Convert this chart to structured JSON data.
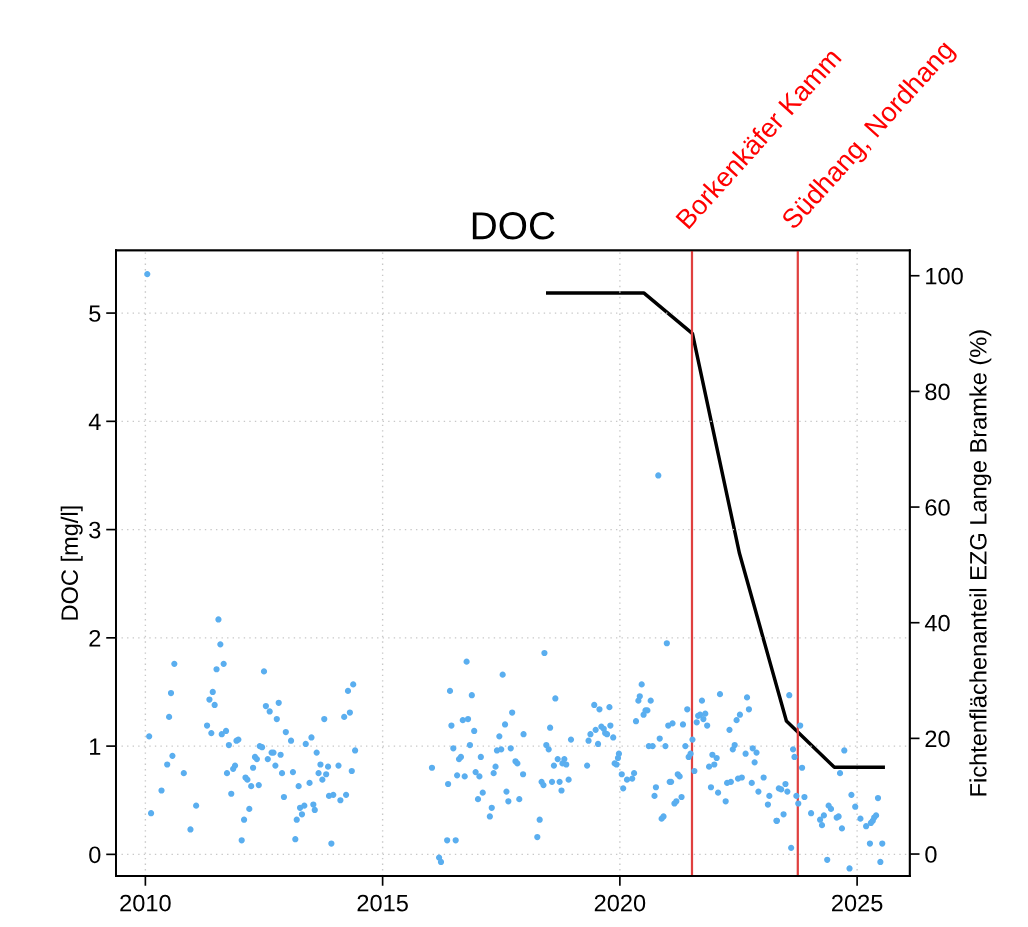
{
  "chart_data": {
    "type": "scatter",
    "title": "DOC",
    "ylabel": "DOC [mg/l]",
    "y2label": "Fichtenflächenanteil EZG Lange Bramke (%)",
    "xlim": [
      2009.38,
      2026.11
    ],
    "xticks": [
      2010,
      2015,
      2020,
      2025
    ],
    "ylim": [
      -0.2,
      5.58
    ],
    "yticks": [
      0,
      1,
      2,
      3,
      4,
      5
    ],
    "y2lim": [
      -3.8,
      104.4
    ],
    "y2ticks": [
      0,
      20,
      40,
      60,
      80,
      100
    ],
    "grid": true,
    "legend": false,
    "ref_lines": [
      {
        "axis": "x",
        "value": 2021.52,
        "label": "Borkenkäfer Kamm",
        "color": "#e0403f",
        "line_style": "solid"
      },
      {
        "axis": "x",
        "value": 2023.75,
        "label": "Südhang, Nordhang",
        "color": "#e0403f",
        "line_style": "solid"
      }
    ],
    "series": [
      {
        "color": "#5aaeef",
        "marker": "circle",
        "x": [
          2010.04,
          2010.08,
          2010.12,
          2010.34,
          2010.46,
          2010.5,
          2010.54,
          2010.57,
          2010.61,
          2010.81,
          2010.95,
          2011.07,
          2011.3,
          2011.35,
          2011.39,
          2011.42,
          2011.46,
          2011.5,
          2011.54,
          2011.58,
          2011.61,
          2011.65,
          2011.7,
          2011.72,
          2011.76,
          2011.81,
          2011.85,
          2011.89,
          2011.92,
          2011.96,
          2012.03,
          2012.08,
          2012.11,
          2012.15,
          2012.19,
          2012.23,
          2012.27,
          2012.31,
          2012.35,
          2012.39,
          2012.41,
          2012.46,
          2012.5,
          2012.54,
          2012.58,
          2012.62,
          2012.66,
          2012.7,
          2012.74,
          2012.77,
          2012.81,
          2012.85,
          2012.88,
          2012.92,
          2012.96,
          2013.07,
          2013.11,
          2013.16,
          2013.19,
          2013.23,
          2013.26,
          2013.3,
          2013.35,
          2013.38,
          2013.46,
          2013.5,
          2013.54,
          2013.57,
          2013.61,
          2013.65,
          2013.69,
          2013.73,
          2013.77,
          2013.81,
          2013.85,
          2013.87,
          2013.92,
          2013.96,
          2014.07,
          2014.11,
          2014.19,
          2014.23,
          2014.27,
          2014.31,
          2014.35,
          2014.38,
          2014.42,
          2016.04,
          2016.19,
          2016.23,
          2016.36,
          2016.38,
          2016.42,
          2016.45,
          2016.49,
          2016.54,
          2016.57,
          2016.61,
          2016.65,
          2016.69,
          2016.73,
          2016.77,
          2016.8,
          2016.84,
          2016.88,
          2016.93,
          2016.96,
          2017.01,
          2017.04,
          2017.07,
          2017.11,
          2017.26,
          2017.3,
          2017.34,
          2017.38,
          2017.41,
          2017.46,
          2017.5,
          2017.53,
          2017.58,
          2017.61,
          2017.65,
          2017.7,
          2017.73,
          2017.8,
          2017.84,
          2017.88,
          2017.96,
          2017.97,
          2018.26,
          2018.31,
          2018.35,
          2018.39,
          2018.41,
          2018.45,
          2018.5,
          2018.53,
          2018.57,
          2018.61,
          2018.64,
          2018.69,
          2018.73,
          2018.77,
          2018.79,
          2018.83,
          2018.87,
          2018.92,
          2018.97,
          2019.31,
          2019.34,
          2019.38,
          2019.46,
          2019.49,
          2019.54,
          2019.57,
          2019.61,
          2019.66,
          2019.69,
          2019.73,
          2019.78,
          2019.8,
          2019.86,
          2019.89,
          2019.93,
          2019.96,
          2019.98,
          2020.04,
          2020.07,
          2020.15,
          2020.26,
          2020.3,
          2020.34,
          2020.39,
          2020.42,
          2020.46,
          2020.5,
          2020.54,
          2020.58,
          2020.61,
          2020.65,
          2020.69,
          2020.73,
          2020.76,
          2020.81,
          2020.84,
          2020.88,
          2020.92,
          2020.96,
          2020.99,
          2021.02,
          2021.05,
          2021.08,
          2021.11,
          2021.15,
          2021.19,
          2021.22,
          2021.26,
          2021.3,
          2021.33,
          2021.38,
          2021.42,
          2021.45,
          2021.49,
          2021.53,
          2021.57,
          2021.62,
          2021.65,
          2021.69,
          2021.73,
          2021.76,
          2021.8,
          2021.84,
          2021.88,
          2021.92,
          2021.95,
          2021.99,
          2022.04,
          2022.07,
          2022.11,
          2022.23,
          2022.26,
          2022.31,
          2022.34,
          2022.38,
          2022.42,
          2022.46,
          2022.49,
          2022.53,
          2022.57,
          2022.65,
          2022.68,
          2022.72,
          2022.78,
          2022.8,
          2022.84,
          2022.88,
          2022.92,
          2023.03,
          2023.12,
          2023.15,
          2023.3,
          2023.31,
          2023.35,
          2023.4,
          2023.45,
          2023.49,
          2023.53,
          2023.57,
          2023.61,
          2023.65,
          2023.68,
          2023.72,
          2023.76,
          2023.8,
          2023.84,
          2023.89,
          2024.03,
          2024.22,
          2024.26,
          2024.3,
          2024.37,
          2024.4,
          2024.45,
          2024.57,
          2024.61,
          2024.64,
          2024.68,
          2024.73,
          2024.84,
          2024.88,
          2024.96,
          2025.07,
          2025.19,
          2025.27,
          2025.29,
          2025.33,
          2025.36,
          2025.4,
          2025.44,
          2025.49,
          2025.53
        ],
        "values": [
          5.36,
          1.09,
          0.38,
          0.59,
          0.83,
          1.27,
          1.49,
          0.91,
          1.76,
          0.75,
          0.23,
          0.45,
          1.19,
          1.43,
          1.12,
          1.5,
          1.38,
          1.71,
          2.17,
          1.94,
          1.11,
          1.76,
          1.14,
          0.75,
          1.01,
          0.56,
          0.79,
          0.82,
          1.05,
          1.06,
          0.13,
          0.32,
          0.71,
          0.69,
          0.42,
          0.63,
          0.8,
          0.9,
          0.88,
          0.64,
          1.0,
          0.99,
          1.69,
          1.37,
          0.88,
          1.32,
          0.94,
          0.94,
          0.82,
          1.25,
          1.4,
          0.92,
          0.75,
          0.53,
          1.13,
          1.05,
          0.76,
          0.14,
          0.32,
          0.63,
          0.43,
          0.37,
          0.45,
          1.02,
          0.66,
          1.08,
          0.46,
          0.41,
          0.94,
          0.75,
          0.83,
          0.69,
          1.25,
          0.74,
          0.81,
          0.54,
          0.1,
          0.55,
          0.82,
          0.5,
          1.27,
          0.55,
          1.51,
          1.31,
          0.77,
          1.57,
          0.96,
          0.8,
          -0.03,
          -0.07,
          0.13,
          0.65,
          1.51,
          1.19,
          0.98,
          0.13,
          0.73,
          0.88,
          0.9,
          1.24,
          0.72,
          1.78,
          1.25,
          1.01,
          1.47,
          1.14,
          0.76,
          0.51,
          0.72,
          0.9,
          0.57,
          0.35,
          0.43,
          0.75,
          0.81,
          0.96,
          1.09,
          0.97,
          1.66,
          1.2,
          0.58,
          0.49,
          0.98,
          1.31,
          0.86,
          0.84,
          0.51,
          0.74,
          1.11,
          0.16,
          0.32,
          0.67,
          0.64,
          1.86,
          1.01,
          0.97,
          1.17,
          0.67,
          0.82,
          1.44,
          0.88,
          0.67,
          0.59,
          0.84,
          0.88,
          0.83,
          0.69,
          1.06,
          0.82,
          1.05,
          1.11,
          1.38,
          1.15,
          1.02,
          1.34,
          1.18,
          1.16,
          1.12,
          1.11,
          1.36,
          1.19,
          1.08,
          0.84,
          0.83,
          0.89,
          0.93,
          0.74,
          0.61,
          0.69,
          0.7,
          0.75,
          1.23,
          1.42,
          1.46,
          1.57,
          1.29,
          1.33,
          1.33,
          1.0,
          1.42,
          1.0,
          0.54,
          0.62,
          3.5,
          1.07,
          0.33,
          0.35,
          1.0,
          1.95,
          1.19,
          0.67,
          0.67,
          1.21,
          0.47,
          0.49,
          0.74,
          0.72,
          0.53,
          1.2,
          1.0,
          1.34,
          0.9,
          0.93,
          1.06,
          0.77,
          1.22,
          1.28,
          1.29,
          1.42,
          1.25,
          1.3,
          1.19,
          0.81,
          0.62,
          0.92,
          0.83,
          0.89,
          0.57,
          1.48,
          0.49,
          0.66,
          1.15,
          0.67,
          0.97,
          1.01,
          1.24,
          0.7,
          1.29,
          0.71,
          0.93,
          1.45,
          1.34,
          0.66,
          0.98,
          0.85,
          0.94,
          0.58,
          0.71,
          0.46,
          0.54,
          0.31,
          0.31,
          0.61,
          0.6,
          0.37,
          0.65,
          0.58,
          1.47,
          0.06,
          0.97,
          0.9,
          0.54,
          0.47,
          1.19,
          0.8,
          0.53,
          0.38,
          0.32,
          0.27,
          0.36,
          -0.05,
          0.45,
          0.42,
          0.34,
          0.35,
          0.75,
          0.24,
          0.96,
          -0.13,
          0.55,
          0.44,
          0.33,
          0.26,
          0.1,
          0.29,
          0.31,
          0.34,
          0.36,
          0.52,
          -0.07,
          0.1
        ]
      },
      {
        "type": "line",
        "axis": "y2",
        "color": "#000000",
        "marker": "none",
        "line_style": "solid",
        "x": [
          2018.48,
          2019.5,
          2020.51,
          2021.53,
          2022.52,
          2023.51,
          2024.52,
          2025.55
        ],
        "values": [
          97,
          97,
          97,
          90,
          52,
          23,
          15,
          15
        ]
      }
    ]
  }
}
